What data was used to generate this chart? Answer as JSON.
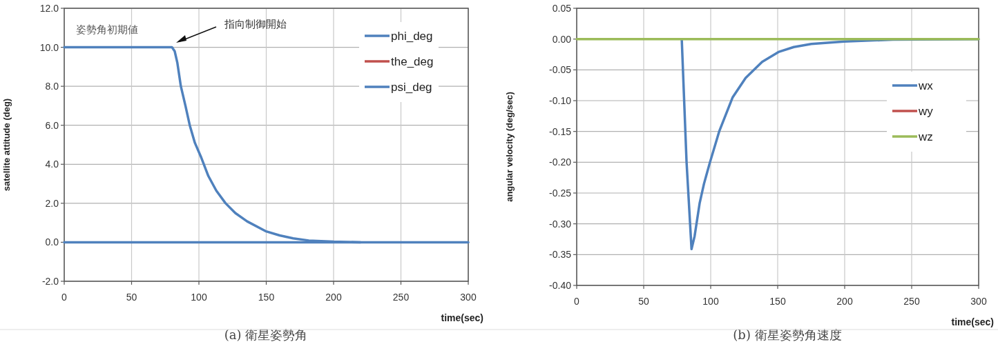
{
  "chart_data": [
    {
      "type": "line",
      "title": "(a) 衛星姿勢角",
      "xlabel": "time(sec)",
      "ylabel": "satellite attitude (deg)",
      "xlim": [
        0,
        300
      ],
      "xticks": [
        0,
        50,
        100,
        150,
        200,
        250,
        300
      ],
      "ylim": [
        -2,
        12
      ],
      "yticks": [
        {
          "value": -2,
          "label": "-2.0"
        },
        {
          "value": 0,
          "label": "0.0"
        },
        {
          "value": 2,
          "label": "2.0"
        },
        {
          "value": 4,
          "label": "4.0"
        },
        {
          "value": 6,
          "label": "6.0"
        },
        {
          "value": 8,
          "label": "8.0"
        },
        {
          "value": 10,
          "label": "10.0"
        },
        {
          "value": 12,
          "label": "12.0"
        }
      ],
      "grid": true,
      "legend": "top right",
      "marker": "none",
      "line_style": "solid",
      "annotations": [
        "姿勢角初期値",
        "指向制御開始"
      ],
      "series": [
        {
          "name": "phi_deg",
          "color": "#4f81bd",
          "x": [
            0,
            80,
            82,
            84,
            86.6,
            90,
            93.2,
            97,
            101.4,
            107,
            112.9,
            119.8,
            127,
            135.8,
            149.5,
            160,
            170,
            181.6,
            200,
            220
          ],
          "values": [
            10,
            10,
            9.8,
            9.2,
            8.0,
            7.0,
            6.0,
            5.1,
            4.4,
            3.4,
            2.65,
            2.0,
            1.5,
            1.07,
            0.57,
            0.35,
            0.2,
            0.09,
            0.03,
            0
          ]
        },
        {
          "name": "the_deg",
          "color": "#c0504d"
        },
        {
          "name": "psi_deg",
          "color": "#4f81bd",
          "x": [
            0,
            300
          ],
          "values": [
            0,
            0
          ]
        }
      ]
    },
    {
      "type": "line",
      "title": "(b) 衛星姿勢角速度",
      "xlabel": "time(sec)",
      "ylabel": "angular velocity (deg/sec)",
      "xlim": [
        0,
        300
      ],
      "xticks": [
        0,
        50,
        100,
        150,
        200,
        250,
        300
      ],
      "ylim": [
        -0.4,
        0.05
      ],
      "yticks": [
        {
          "value": -0.4,
          "label": "-0.40"
        },
        {
          "value": -0.35,
          "label": "-0.35"
        },
        {
          "value": -0.3,
          "label": "-0.30"
        },
        {
          "value": -0.25,
          "label": "-0.25"
        },
        {
          "value": -0.2,
          "label": "-0.20"
        },
        {
          "value": -0.15,
          "label": "-0.15"
        },
        {
          "value": -0.1,
          "label": "-0.10"
        },
        {
          "value": -0.05,
          "label": "-0.05"
        },
        {
          "value": 0,
          "label": "0.00"
        },
        {
          "value": 0.05,
          "label": "0.05"
        }
      ],
      "grid": true,
      "legend": "right",
      "marker": "none",
      "line_style": "solid",
      "series": [
        {
          "name": "wx",
          "color": "#4f81bd",
          "x": [
            78.4,
            82,
            85.7,
            88,
            91.8,
            95,
            99.2,
            106.5,
            116.3,
            126.1,
            138.4,
            150.6,
            162,
            175.1,
            199.6,
            236,
            300
          ],
          "values": [
            0,
            -0.2,
            -0.341,
            -0.32,
            -0.266,
            -0.235,
            -0.202,
            -0.149,
            -0.095,
            -0.063,
            -0.037,
            -0.021,
            -0.013,
            -0.008,
            -0.004,
            -0.001,
            0
          ]
        },
        {
          "name": "wy",
          "color": "#c0504d"
        },
        {
          "name": "wz",
          "color": "#9bbb59",
          "x": [
            0,
            300
          ],
          "values": [
            0,
            0
          ]
        }
      ]
    }
  ]
}
